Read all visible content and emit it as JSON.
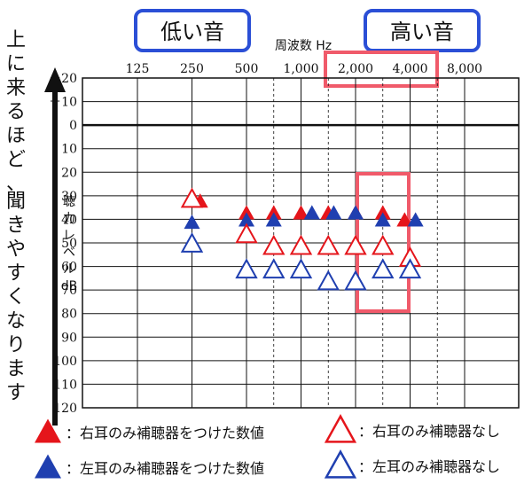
{
  "chart_data": {
    "type": "scatter",
    "title": "",
    "xlabel": "周波数 Hz",
    "ylabel": [
      "聴",
      "力",
      "レ",
      "ベ",
      "ル",
      "dB"
    ],
    "x_categories": [
      "125",
      "250",
      "500",
      "1,000",
      "2,000",
      "4,000",
      "8,000"
    ],
    "ylim": [
      -20,
      120
    ],
    "y_ticks": [
      "－20",
      "－10",
      "0",
      "10",
      "20",
      "30",
      "40",
      "50",
      "60",
      "70",
      "80",
      "90",
      "100",
      "110",
      "120"
    ],
    "y_tick_values": [
      -20,
      -10,
      0,
      10,
      20,
      30,
      40,
      50,
      60,
      70,
      80,
      90,
      100,
      110,
      120
    ],
    "grid": true,
    "series": [
      {
        "name": "右耳のみ補聴器をつけた数値",
        "marker": "filled-triangle",
        "color": "#e5151b",
        "points": [
          {
            "x": 1.15,
            "y": 32
          },
          {
            "x": 2.0,
            "y": 37
          },
          {
            "x": 2.5,
            "y": 37
          },
          {
            "x": 3.0,
            "y": 37
          },
          {
            "x": 3.5,
            "y": 37
          },
          {
            "x": 4.0,
            "y": 37
          },
          {
            "x": 4.5,
            "y": 37
          },
          {
            "x": 4.9,
            "y": 40
          }
        ]
      },
      {
        "name": "左耳のみ補聴器をつけた数値",
        "marker": "filled-triangle",
        "color": "#1f3fb0",
        "points": [
          {
            "x": 1.0,
            "y": 41
          },
          {
            "x": 2.0,
            "y": 40
          },
          {
            "x": 2.5,
            "y": 40
          },
          {
            "x": 3.2,
            "y": 37
          },
          {
            "x": 3.6,
            "y": 37
          },
          {
            "x": 4.0,
            "y": 37
          },
          {
            "x": 4.5,
            "y": 40
          },
          {
            "x": 5.1,
            "y": 40
          }
        ]
      },
      {
        "name": "右耳のみ補聴器なし",
        "marker": "open-triangle",
        "color": "#e5151b",
        "points": [
          {
            "x": 1.0,
            "y": 31
          },
          {
            "x": 2.0,
            "y": 46
          },
          {
            "x": 2.5,
            "y": 51
          },
          {
            "x": 3.0,
            "y": 51
          },
          {
            "x": 3.5,
            "y": 51
          },
          {
            "x": 4.0,
            "y": 51
          },
          {
            "x": 4.5,
            "y": 51
          },
          {
            "x": 5.0,
            "y": 56
          }
        ]
      },
      {
        "name": "左耳のみ補聴器なし",
        "marker": "open-triangle",
        "color": "#1f3fb0",
        "points": [
          {
            "x": 1.0,
            "y": 50
          },
          {
            "x": 2.0,
            "y": 61
          },
          {
            "x": 2.5,
            "y": 61
          },
          {
            "x": 3.0,
            "y": 61
          },
          {
            "x": 3.5,
            "y": 66
          },
          {
            "x": 4.0,
            "y": 66
          },
          {
            "x": 4.5,
            "y": 61
          },
          {
            "x": 5.0,
            "y": 61
          }
        ]
      }
    ],
    "annotations": {
      "low_label": "低い音",
      "high_label": "高い音",
      "side_note": "上に来るほど、聞きやすくなります",
      "highlight_freqs": [
        "2,000",
        "4,000"
      ],
      "highlight_color": "#f05a6a",
      "label_box_color": "#2b4fd6"
    }
  }
}
